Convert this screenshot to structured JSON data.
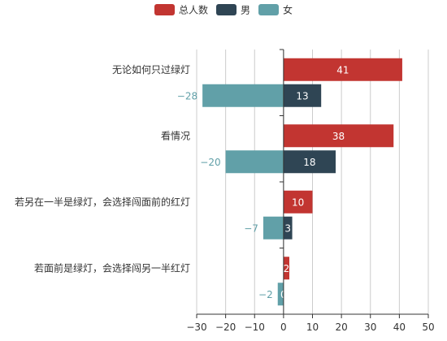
{
  "chart_data": {
    "type": "bar",
    "orientation": "horizontal",
    "title": "",
    "xlabel": "",
    "ylabel": "",
    "xlim": [
      -30,
      50
    ],
    "xticks": [
      -30,
      -20,
      -10,
      0,
      10,
      20,
      30,
      40,
      50
    ],
    "grid": "vertical",
    "legend": "top-center",
    "categories": [
      "无论如何只过绿灯",
      "看情况",
      "若另在一半是绿灯，会选择闯面前的红灯",
      "若面前是绿灯，会选择闯另一半红灯"
    ],
    "series": [
      {
        "name": "总人数",
        "color": "#c23531",
        "values": [
          41,
          38,
          10,
          2
        ],
        "label_position": "inside"
      },
      {
        "name": "男",
        "color": "#2f4554",
        "values": [
          13,
          18,
          3,
          0
        ],
        "label_position": "inside"
      },
      {
        "name": "女",
        "color": "#61a0a8",
        "values": [
          -28,
          -20,
          -7,
          -2
        ],
        "label_position": "left"
      }
    ]
  }
}
